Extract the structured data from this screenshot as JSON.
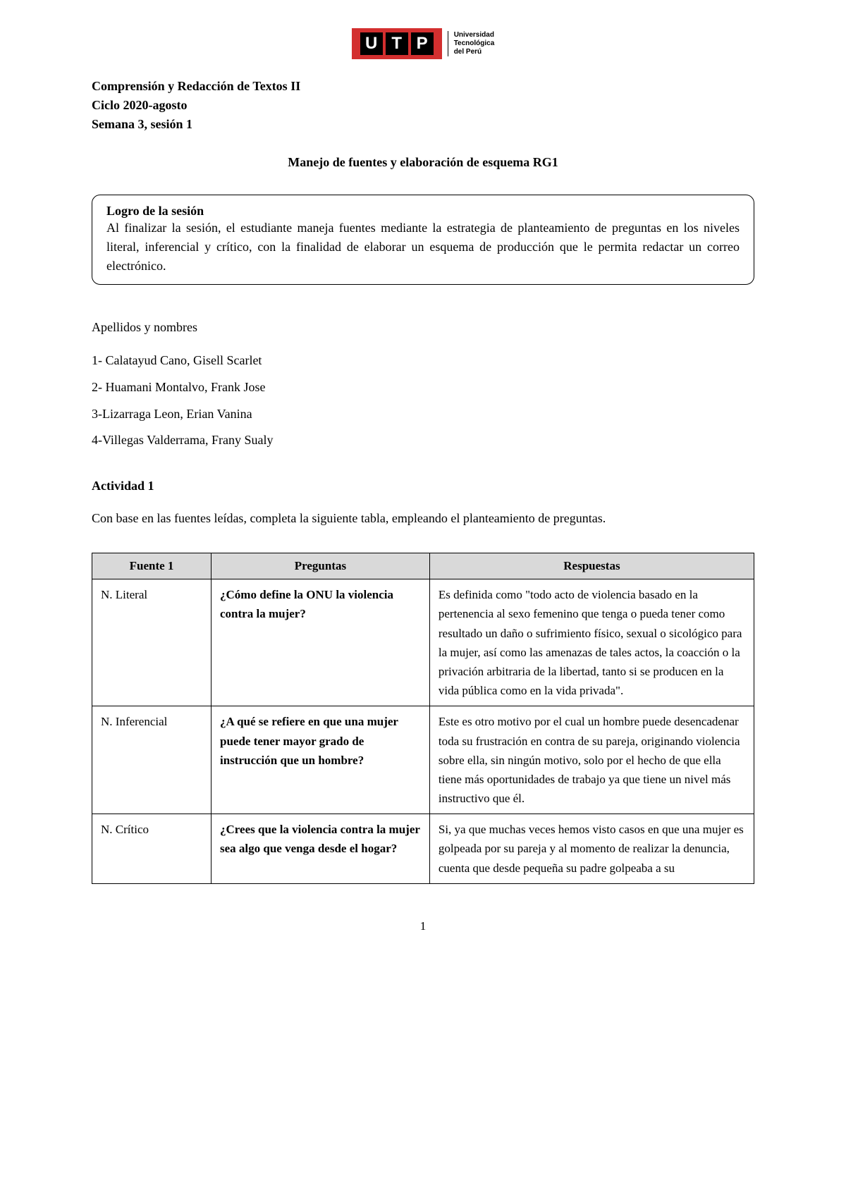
{
  "logo": {
    "letters": [
      "U",
      "T",
      "P"
    ],
    "subtitle_line1": "Universidad",
    "subtitle_line2": "Tecnológica",
    "subtitle_line3": "del Perú"
  },
  "header": {
    "line1": "Comprensión y Redacción de Textos II",
    "line2": "Ciclo 2020-agosto",
    "line3": "Semana 3, sesión 1"
  },
  "main_title": "Manejo de fuentes y elaboración de esquema RG1",
  "session_box": {
    "title": "Logro de la sesión",
    "text": "Al finalizar la sesión, el estudiante maneja fuentes mediante la estrategia de planteamiento de preguntas en los niveles literal, inferencial y crítico, con la finalidad de elaborar un esquema de producción que le permita redactar un correo electrónico."
  },
  "names": {
    "label": "Apellidos y nombres",
    "list": [
      "1- Calatayud Cano, Gisell Scarlet",
      "2- Huamani Montalvo, Frank Jose",
      "3-Lizarraga Leon, Erian Vanina",
      "4-Villegas Valderrama, Frany Sualy"
    ]
  },
  "activity": {
    "title": "Actividad 1",
    "text": "Con base en las fuentes leídas, completa la siguiente tabla, empleando el planteamiento de preguntas."
  },
  "table": {
    "headers": [
      "Fuente 1",
      "Preguntas",
      "Respuestas"
    ],
    "rows": [
      {
        "level": "N. Literal",
        "question": "¿Cómo define la ONU la violencia contra la mujer?",
        "answer": "Es definida como \"todo acto de violencia basado en la pertenencia al sexo femenino que tenga o pueda tener como resultado un daño o sufrimiento físico, sexual o sicológico para la mujer, así como las amenazas de tales actos, la coacción o la privación arbitraria de la libertad, tanto si se producen en la vida pública como en la vida privada\"."
      },
      {
        "level": "N. Inferencial",
        "question": "¿A qué se refiere en que una mujer puede tener mayor grado de instrucción que un hombre?",
        "answer": "Este es otro motivo por el cual un hombre puede desencadenar toda su frustración en contra de su pareja, originando violencia sobre ella, sin ningún motivo, solo por el hecho de que ella tiene más oportunidades de trabajo ya que tiene un nivel más instructivo que él."
      },
      {
        "level": "N. Crítico",
        "question": "¿Crees que la violencia contra la mujer sea algo que venga desde el hogar?",
        "answer": "Si, ya que muchas veces hemos visto casos en que una mujer es golpeada por su pareja y al momento de realizar la denuncia, cuenta que desde pequeña su padre golpeaba a su"
      }
    ]
  },
  "page_number": "1"
}
